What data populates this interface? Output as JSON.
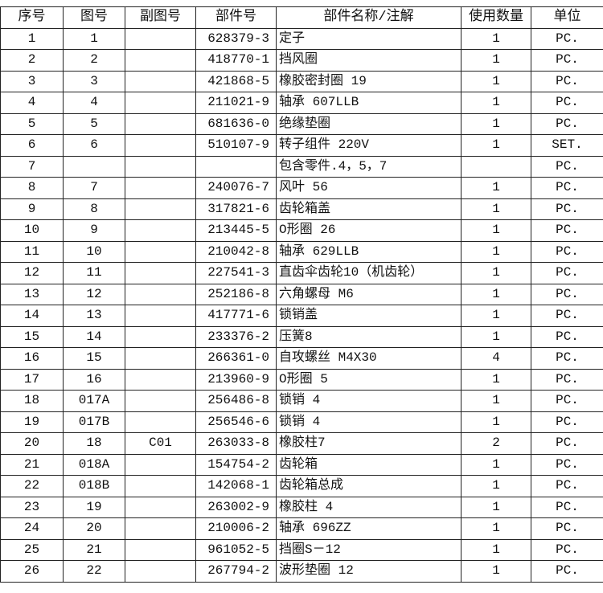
{
  "headers": [
    "序号",
    "图号",
    "副图号",
    "部件号",
    "部件名称/注解",
    "使用数量",
    "单位"
  ],
  "rows": [
    [
      "1",
      "1",
      "",
      "628379-3",
      "定子",
      "1",
      "PC."
    ],
    [
      "2",
      "2",
      "",
      "418770-1",
      "挡风圈",
      "1",
      "PC."
    ],
    [
      "3",
      "3",
      "",
      "421868-5",
      "橡胶密封圈 19",
      "1",
      "PC."
    ],
    [
      "4",
      "4",
      "",
      "211021-9",
      "轴承 607LLB",
      "1",
      "PC."
    ],
    [
      "5",
      "5",
      "",
      "681636-0",
      "绝缘垫圈",
      "1",
      "PC."
    ],
    [
      "6",
      "6",
      "",
      "510107-9",
      "转子组件 220V",
      "1",
      "SET."
    ],
    [
      "7",
      "",
      "",
      "",
      "包含零件.4，5，7",
      "",
      "PC."
    ],
    [
      "8",
      "7",
      "",
      "240076-7",
      "风叶 56",
      "1",
      "PC."
    ],
    [
      "9",
      "8",
      "",
      "317821-6",
      "齿轮箱盖",
      "1",
      "PC."
    ],
    [
      "10",
      "9",
      "",
      "213445-5",
      "O形圈  26",
      "1",
      "PC."
    ],
    [
      "11",
      "10",
      "",
      "210042-8",
      "轴承 629LLB",
      "1",
      "PC."
    ],
    [
      "12",
      "11",
      "",
      "227541-3",
      "直齿伞齿轮10（机齿轮）",
      "1",
      "PC."
    ],
    [
      "13",
      "12",
      "",
      "252186-8",
      "六角螺母 M6",
      "1",
      "PC."
    ],
    [
      "14",
      "13",
      "",
      "417771-6",
      "锁销盖",
      "1",
      "PC."
    ],
    [
      "15",
      "14",
      "",
      "233376-2",
      "压簧8",
      "1",
      "PC."
    ],
    [
      "16",
      "15",
      "",
      "266361-0",
      "自攻螺丝 M4X30",
      "4",
      "PC."
    ],
    [
      "17",
      "16",
      "",
      "213960-9",
      "O形圈 5",
      "1",
      "PC."
    ],
    [
      "18",
      "017A",
      "",
      "256486-8",
      "锁销 4",
      "1",
      "PC."
    ],
    [
      "19",
      "017B",
      "",
      "256546-6",
      "锁销 4",
      "1",
      "PC."
    ],
    [
      "20",
      "18",
      "C01",
      "263033-8",
      "橡胶柱7",
      "2",
      "PC."
    ],
    [
      "21",
      "018A",
      "",
      "154754-2",
      "齿轮箱",
      "1",
      "PC."
    ],
    [
      "22",
      "018B",
      "",
      "142068-1",
      "齿轮箱总成",
      "1",
      "PC."
    ],
    [
      "23",
      "19",
      "",
      "263002-9",
      "橡胶柱 4",
      "1",
      "PC."
    ],
    [
      "24",
      "20",
      "",
      "210006-2",
      "轴承 696ZZ",
      "1",
      "PC."
    ],
    [
      "25",
      "21",
      "",
      "961052-5",
      "挡圈S－12",
      "1",
      "PC."
    ],
    [
      "26",
      "22",
      "",
      "267794-2",
      "波形垫圈 12",
      "1",
      "PC."
    ]
  ]
}
